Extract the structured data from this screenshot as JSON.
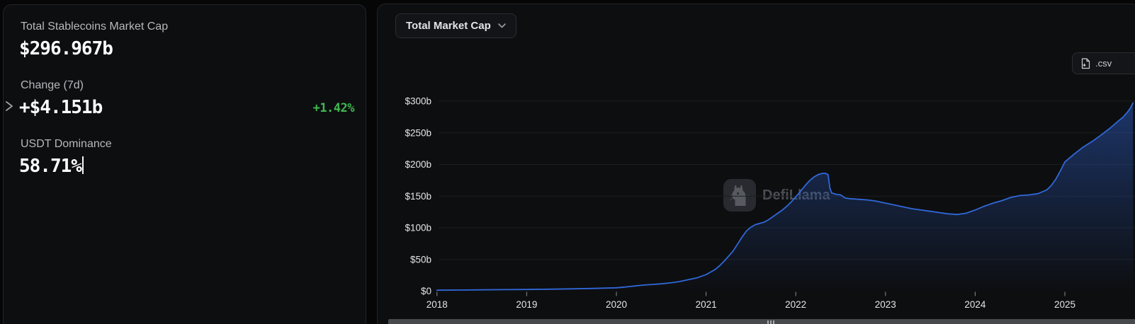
{
  "stats_panel": {
    "items": [
      {
        "label": "Total Stablecoins Market Cap",
        "value": "$296.967b"
      },
      {
        "label": "Change (7d)",
        "value": "+$4.151b",
        "change": "+1.42%"
      },
      {
        "label": "USDT Dominance",
        "value": "58.71%"
      }
    ]
  },
  "chart_panel": {
    "metric_dropdown": {
      "value": "Total Market Cap"
    },
    "csv_button_label": ".csv",
    "watermark_text": "DefiLlama"
  },
  "colors": {
    "positive_green": "#3fb950",
    "line_blue": "#3068d9",
    "fill_top": "rgba(44,92,192,0.5)",
    "fill_bottom": "rgba(44,92,192,0)",
    "grid": "#1b1d21",
    "axis_text": "#e4e5e7"
  },
  "chart_data": {
    "type": "area",
    "title": "Total Market Cap",
    "series_name": "Total Stablecoins Market Cap ($b)",
    "xlim": [
      2017.97,
      2025.79
    ],
    "ylim": [
      0,
      300
    ],
    "x_ticks": [
      2018,
      2019,
      2020,
      2021,
      2022,
      2023,
      2024,
      2025
    ],
    "x_tick_labels": [
      "2018",
      "2019",
      "2020",
      "2021",
      "2022",
      "2023",
      "2024",
      "2025"
    ],
    "y_ticks": [
      0,
      50,
      100,
      150,
      200,
      250,
      300
    ],
    "y_tick_labels": [
      "$0",
      "$50b",
      "$100b",
      "$150b",
      "$200b",
      "$250b",
      "$300b"
    ],
    "grid": "horizontal-only",
    "legend": "none",
    "x": [
      2018.0,
      2018.25,
      2018.5,
      2018.75,
      2019.0,
      2019.25,
      2019.5,
      2019.75,
      2020.0,
      2020.1,
      2020.2,
      2020.3,
      2020.4,
      2020.5,
      2020.6,
      2020.7,
      2020.8,
      2020.9,
      2021.0,
      2021.05,
      2021.1,
      2021.15,
      2021.2,
      2021.25,
      2021.3,
      2021.35,
      2021.4,
      2021.45,
      2021.5,
      2021.55,
      2021.6,
      2021.65,
      2021.7,
      2021.75,
      2021.8,
      2021.85,
      2021.9,
      2021.95,
      2022.0,
      2022.05,
      2022.1,
      2022.15,
      2022.2,
      2022.25,
      2022.3,
      2022.33,
      2022.36,
      2022.38,
      2022.4,
      2022.45,
      2022.5,
      2022.55,
      2022.6,
      2022.7,
      2022.8,
      2022.9,
      2023.0,
      2023.1,
      2023.2,
      2023.3,
      2023.4,
      2023.5,
      2023.6,
      2023.7,
      2023.8,
      2023.9,
      2024.0,
      2024.1,
      2024.2,
      2024.3,
      2024.4,
      2024.5,
      2024.6,
      2024.7,
      2024.8,
      2024.85,
      2024.9,
      2024.95,
      2025.0,
      2025.1,
      2025.2,
      2025.3,
      2025.4,
      2025.5,
      2025.6,
      2025.65,
      2025.7,
      2025.73,
      2025.76
    ],
    "values": [
      1.5,
      1.7,
      2.0,
      2.4,
      2.6,
      3.0,
      3.6,
      4.3,
      5.2,
      6.5,
      8.0,
      9.5,
      10.5,
      11.5,
      13,
      15,
      18,
      21,
      26,
      30,
      34,
      40,
      47,
      55,
      63,
      74,
      85,
      95,
      101,
      105,
      107,
      109,
      113,
      118,
      123,
      128,
      134,
      141,
      149,
      157,
      166,
      174,
      180,
      184,
      186,
      186,
      184,
      163,
      155,
      153,
      152,
      147,
      146,
      145,
      144,
      142,
      139,
      136,
      133,
      130,
      128,
      126,
      124,
      122,
      121,
      123,
      128,
      134,
      139,
      143,
      148,
      151,
      152,
      154,
      160,
      167,
      177,
      190,
      204,
      216,
      227,
      236,
      246,
      257,
      269,
      275,
      283,
      289,
      297
    ]
  }
}
